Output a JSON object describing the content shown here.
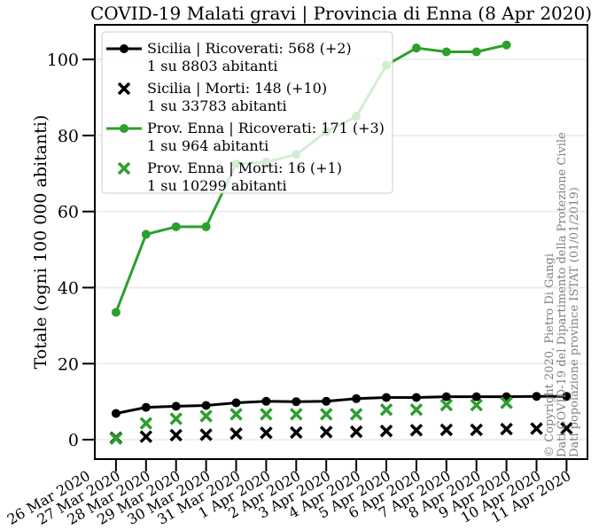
{
  "chart_data": {
    "type": "line",
    "title": "COVID-19 Malati gravi | Provincia di Enna (8 Apr 2020)",
    "ylabel": "Totale (ogni 100 000 abitanti)",
    "categories": [
      "26 Mar 2020",
      "27 Mar 2020",
      "28 Mar 2020",
      "29 Mar 2020",
      "30 Mar 2020",
      "31 Mar 2020",
      "1 Apr 2020",
      "2 Apr 2020",
      "3 Apr 2020",
      "4 Apr 2020",
      "5 Apr 2020",
      "6 Apr 2020",
      "7 Apr 2020",
      "8 Apr 2020",
      "9 Apr 2020",
      "10 Apr 2020",
      "11 Apr 2020"
    ],
    "series": [
      {
        "name": "Sicilia | Ricoverati: 568 (+2)\n1 su 8803 abitanti",
        "color": "#000000",
        "style": "line",
        "values": [
          null,
          6.9,
          8.5,
          8.8,
          9.0,
          9.7,
          10.1,
          10.0,
          10.1,
          10.8,
          11.1,
          11.1,
          11.3,
          11.3,
          11.3,
          11.4,
          11.4
        ]
      },
      {
        "name": "Sicilia | Morti: 148 (+10)\n1 su 33783 abitanti",
        "color": "#000000",
        "style": "cross",
        "values": [
          null,
          0.5,
          0.8,
          1.2,
          1.3,
          1.6,
          1.8,
          1.9,
          2.0,
          2.1,
          2.3,
          2.5,
          2.6,
          2.6,
          2.8,
          2.9,
          3.0
        ]
      },
      {
        "name": "Prov. Enna | Ricoverati: 171 (+3)\n1 su 964 abitanti",
        "color": "#2ca02c",
        "style": "line",
        "values": [
          null,
          33.5,
          54,
          56,
          56,
          72.5,
          73,
          75,
          81,
          85,
          98.5,
          103,
          102,
          102,
          103.8,
          null,
          null
        ]
      },
      {
        "name": "Prov. Enna | Morti: 16 (+1)\n1 su 10299 abitanti",
        "color": "#2ca02c",
        "style": "cross",
        "values": [
          null,
          0.3,
          4.3,
          5.5,
          6.2,
          6.7,
          6.7,
          6.7,
          6.7,
          6.7,
          7.9,
          7.9,
          9.1,
          9.1,
          9.7,
          null,
          null
        ]
      }
    ],
    "ylim": [
      -5.1,
      109.1
    ],
    "yticks": [
      0,
      20,
      40,
      60,
      80,
      100
    ],
    "grid": true,
    "legend": "upper left",
    "annotation": [
      "© Copyright 2020, Pietro Di Gangi",
      "Dati COVID-19 del Dipartimento della Protezione Civile",
      "Dati popolazione province ISTAT (01/01/2019)"
    ]
  }
}
